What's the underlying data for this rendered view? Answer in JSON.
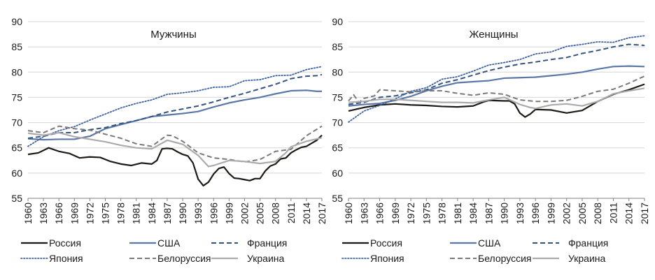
{
  "chart_data": {
    "type": "line",
    "charts": [
      {
        "title": "Мужчины",
        "xlabel": "",
        "ylabel": "",
        "ylim": [
          55,
          90
        ],
        "yticks": [
          55,
          60,
          65,
          70,
          75,
          80,
          85,
          90
        ],
        "xticks": [
          1960,
          1963,
          1966,
          1969,
          1972,
          1975,
          1978,
          1981,
          1984,
          1987,
          1990,
          1993,
          1996,
          1999,
          2002,
          2005,
          2008,
          2011,
          2014,
          2017
        ],
        "grid": true,
        "series": [
          {
            "name": "Россия",
            "x": [
              1960,
              1962,
              1964,
              1966,
              1968,
              1970,
              1972,
              1974,
              1976,
              1978,
              1980,
              1982,
              1984,
              1985,
              1986,
              1987,
              1988,
              1989,
              1990,
              1991,
              1992,
              1993,
              1994,
              1995,
              1996,
              1997,
              1998,
              1999,
              2000,
              2001,
              2002,
              2003,
              2004,
              2005,
              2006,
              2007,
              2008,
              2009,
              2010,
              2011,
              2012,
              2013,
              2014,
              2015,
              2016,
              2017
            ],
            "y": [
              63.7,
              64.0,
              65.0,
              64.3,
              63.9,
              63.0,
              63.2,
              63.1,
              62.3,
              61.8,
              61.5,
              62.0,
              61.8,
              62.5,
              64.8,
              64.9,
              64.8,
              64.2,
              63.7,
              63.4,
              62.0,
              58.8,
              57.5,
              58.2,
              59.8,
              60.9,
              61.2,
              59.9,
              59.0,
              58.9,
              58.7,
              58.5,
              58.9,
              58.9,
              60.4,
              61.4,
              61.8,
              62.8,
              63.0,
              64.0,
              64.6,
              65.1,
              65.3,
              65.9,
              66.5,
              67.5
            ]
          },
          {
            "name": "США",
            "x": [
              1960,
              1963,
              1966,
              1969,
              1972,
              1975,
              1978,
              1981,
              1984,
              1987,
              1990,
              1993,
              1996,
              1999,
              2002,
              2005,
              2008,
              2011,
              2014,
              2016,
              2017
            ],
            "y": [
              66.8,
              66.6,
              66.7,
              66.7,
              67.3,
              68.8,
              69.6,
              70.4,
              71.2,
              71.5,
              71.8,
              72.2,
              73.1,
              73.9,
              74.5,
              75.0,
              75.7,
              76.3,
              76.4,
              76.2,
              76.2
            ]
          },
          {
            "name": "Франция",
            "x": [
              1960,
              1963,
              1966,
              1969,
              1972,
              1975,
              1978,
              1981,
              1984,
              1987,
              1990,
              1993,
              1996,
              1999,
              2002,
              2005,
              2008,
              2011,
              2014,
              2016,
              2017
            ],
            "y": [
              66.9,
              67.3,
              68.0,
              68.0,
              68.6,
              69.0,
              69.8,
              70.4,
              71.2,
              72.1,
              72.7,
              73.3,
              74.1,
              75.0,
              75.8,
              76.7,
              77.6,
              78.7,
              79.2,
              79.3,
              79.5
            ]
          },
          {
            "name": "Япония",
            "x": [
              1960,
              1963,
              1966,
              1969,
              1972,
              1975,
              1978,
              1981,
              1984,
              1987,
              1990,
              1993,
              1996,
              1999,
              2002,
              2005,
              2008,
              2011,
              2014,
              2017
            ],
            "y": [
              65.3,
              67.2,
              68.4,
              69.2,
              70.5,
              71.7,
              72.9,
              73.8,
              74.5,
              75.6,
              75.9,
              76.3,
              77.0,
              77.1,
              78.3,
              78.5,
              79.3,
              79.4,
              80.5,
              81.1
            ]
          },
          {
            "name": "Белоруссия",
            "x": [
              1960,
              1963,
              1966,
              1969,
              1972,
              1975,
              1978,
              1981,
              1984,
              1986,
              1987,
              1988,
              1990,
              1993,
              1996,
              1999,
              2002,
              2005,
              2008,
              2011,
              2014,
              2017
            ],
            "y": [
              68.4,
              68.0,
              69.3,
              68.8,
              68.5,
              67.7,
              66.9,
              65.8,
              65.3,
              66.8,
              67.5,
              67.4,
              66.3,
              64.0,
              63.0,
              62.7,
              62.2,
              62.7,
              64.3,
              64.7,
              67.4,
              69.3
            ]
          },
          {
            "name": "Украина",
            "x": [
              1960,
              1963,
              1966,
              1969,
              1972,
              1975,
              1978,
              1981,
              1984,
              1987,
              1990,
              1993,
              1995,
              1996,
              1999,
              2002,
              2005,
              2008,
              2010,
              2011,
              2014,
              2017
            ],
            "y": [
              67.9,
              67.5,
              68.0,
              67.2,
              66.7,
              66.2,
              65.5,
              65.0,
              64.8,
              66.5,
              65.7,
              63.5,
              61.3,
              61.5,
              62.5,
              62.3,
              61.9,
              62.3,
              64.0,
              65.2,
              66.3,
              67.0
            ]
          }
        ]
      },
      {
        "title": "Женщины",
        "xlabel": "",
        "ylabel": "",
        "ylim": [
          55,
          90
        ],
        "yticks": [
          55,
          60,
          65,
          70,
          75,
          80,
          85,
          90
        ],
        "xticks": [
          1960,
          1963,
          1966,
          1969,
          1972,
          1975,
          1978,
          1981,
          1984,
          1987,
          1990,
          1993,
          1996,
          1999,
          2002,
          2005,
          2008,
          2011,
          2014,
          2017
        ],
        "grid": true,
        "series": [
          {
            "name": "Россия",
            "x": [
              1960,
              1963,
              1966,
              1969,
              1972,
              1975,
              1978,
              1981,
              1984,
              1986,
              1987,
              1990,
              1991,
              1992,
              1993,
              1994,
              1995,
              1996,
              1999,
              2002,
              2005,
              2008,
              2011,
              2014,
              2017
            ],
            "y": [
              72.3,
              73.0,
              73.5,
              73.7,
              73.5,
              73.4,
              73.2,
              73.1,
              73.3,
              74.1,
              74.4,
              74.3,
              74.3,
              73.7,
              71.9,
              71.1,
              71.7,
              72.6,
              72.5,
              71.9,
              72.4,
              74.2,
              75.6,
              76.5,
              77.6
            ]
          },
          {
            "name": "США",
            "x": [
              1960,
              1963,
              1966,
              1969,
              1972,
              1975,
              1978,
              1981,
              1984,
              1987,
              1990,
              1993,
              1996,
              1999,
              2002,
              2005,
              2008,
              2011,
              2014,
              2017
            ],
            "y": [
              73.3,
              73.6,
              73.8,
              74.4,
              75.2,
              76.3,
              77.2,
              77.9,
              78.1,
              78.3,
              78.8,
              78.9,
              79.0,
              79.3,
              79.6,
              80.0,
              80.6,
              81.1,
              81.2,
              81.1
            ]
          },
          {
            "name": "Франция",
            "x": [
              1960,
              1963,
              1966,
              1969,
              1972,
              1975,
              1978,
              1981,
              1984,
              1987,
              1990,
              1993,
              1996,
              1999,
              2002,
              2005,
              2008,
              2011,
              2014,
              2017
            ],
            "y": [
              73.6,
              74.0,
              75.0,
              75.3,
              75.9,
              76.5,
              77.8,
              78.5,
              79.4,
              80.3,
              81.0,
              81.6,
              82.0,
              82.5,
              82.9,
              83.7,
              84.3,
              85.0,
              85.5,
              85.3
            ]
          },
          {
            "name": "Япония",
            "x": [
              1960,
              1963,
              1966,
              1969,
              1972,
              1975,
              1978,
              1981,
              1984,
              1987,
              1990,
              1993,
              1996,
              1999,
              2002,
              2005,
              2008,
              2011,
              2014,
              2017
            ],
            "y": [
              70.1,
              72.3,
              73.4,
              74.7,
              76.2,
              76.9,
              78.6,
              79.1,
              80.2,
              81.4,
              81.9,
              82.5,
              83.6,
              84.0,
              85.1,
              85.5,
              86.0,
              85.9,
              86.8,
              87.2
            ]
          },
          {
            "name": "Белоруссия",
            "x": [
              1960,
              1961,
              1962,
              1963,
              1965,
              1966,
              1969,
              1972,
              1975,
              1978,
              1981,
              1984,
              1987,
              1990,
              1993,
              1996,
              1999,
              2002,
              2005,
              2008,
              2011,
              2014,
              2017
            ],
            "y": [
              74.3,
              75.5,
              74.0,
              74.8,
              75.3,
              76.5,
              76.3,
              76.1,
              76.3,
              76.3,
              75.8,
              75.4,
              75.9,
              75.6,
              74.5,
              74.2,
              74.2,
              74.4,
              75.2,
              76.2,
              76.6,
              77.8,
              79.2
            ]
          },
          {
            "name": "Украина",
            "x": [
              1960,
              1963,
              1966,
              1969,
              1972,
              1975,
              1978,
              1981,
              1984,
              1987,
              1990,
              1993,
              1995,
              1996,
              1999,
              2002,
              2005,
              2008,
              2011,
              2014,
              2017
            ],
            "y": [
              74.0,
              74.2,
              74.6,
              74.6,
              74.4,
              74.2,
              74.0,
              74.0,
              73.9,
              74.5,
              75.0,
              73.6,
              73.0,
              72.8,
              73.5,
              73.7,
              73.3,
              74.2,
              75.7,
              76.3,
              76.8
            ]
          }
        ]
      }
    ],
    "legend": {
      "placement": "bottom",
      "entries": [
        {
          "name": "Россия",
          "color": "#1e1a17",
          "dash": "solid"
        },
        {
          "name": "США",
          "color": "#5b77a8",
          "dash": "solid"
        },
        {
          "name": "Франция",
          "color": "#33537f",
          "dash": "dashed"
        },
        {
          "name": "Япония",
          "color": "#3f63a0",
          "dash": "dotted"
        },
        {
          "name": "Белоруссия",
          "color": "#7a7a7a",
          "dash": "dashed"
        },
        {
          "name": "Украина",
          "color": "#ababab",
          "dash": "solid"
        }
      ]
    }
  }
}
